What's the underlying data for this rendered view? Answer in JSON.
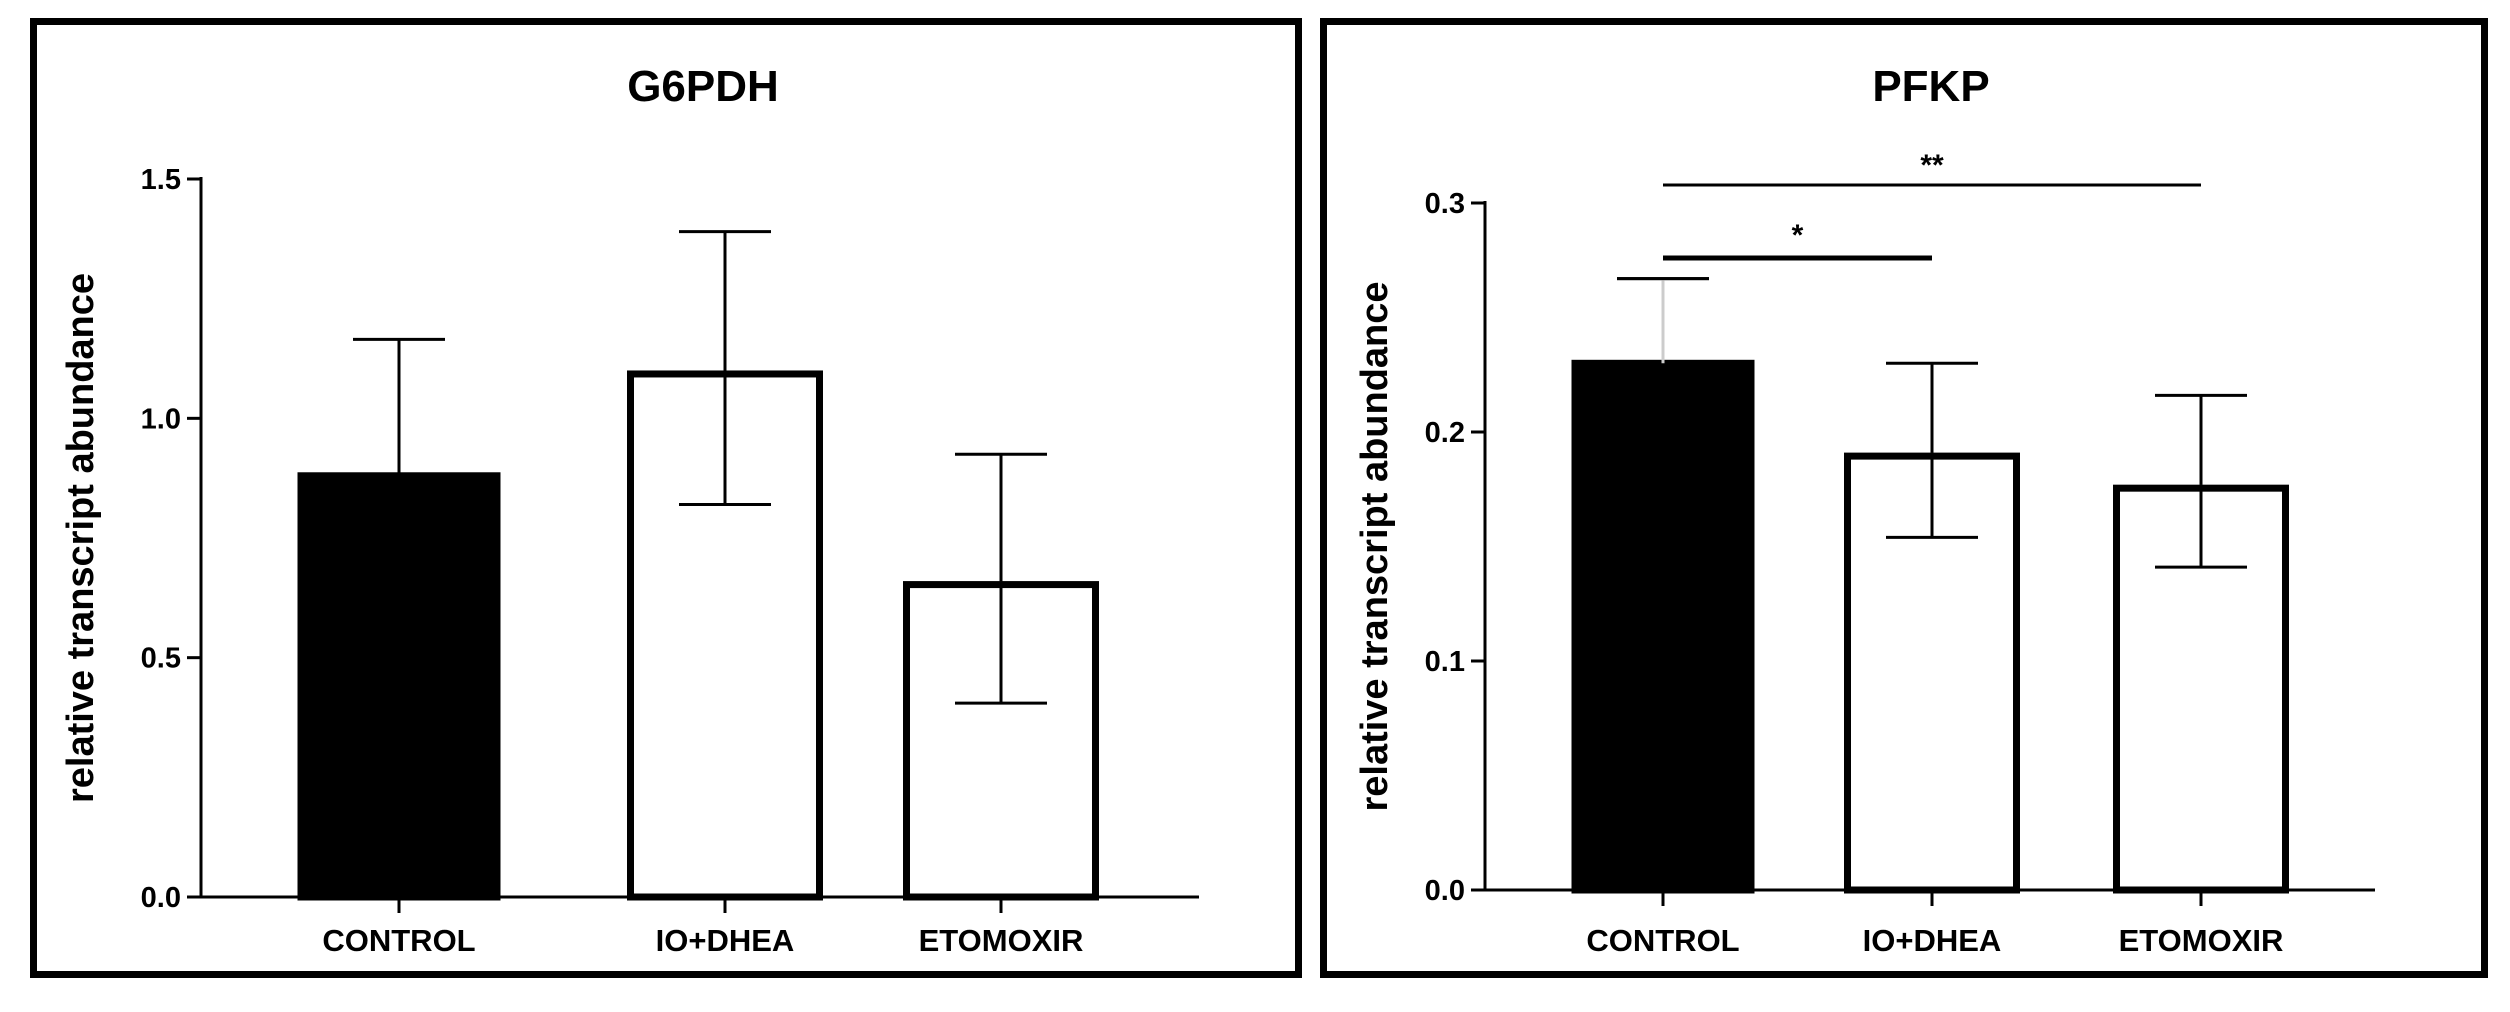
{
  "chart_data": [
    {
      "type": "bar",
      "title": "G6PDH",
      "xlabel": "",
      "ylabel": "relative transcript abundance",
      "ylim": [
        0,
        1.5
      ],
      "yticks": [
        "0.0",
        "0.5",
        "1.0",
        "1.5"
      ],
      "yticks_values": [
        0,
        0.5,
        1.0,
        1.5
      ],
      "categories": [
        "CONTROL",
        "IO+DHEA",
        "ETOMOXIR"
      ],
      "values": [
        0.88,
        1.1,
        0.66
      ],
      "error_upper": [
        1.165,
        1.39,
        0.925
      ],
      "error_lower": [
        null,
        0.82,
        0.405
      ],
      "fills": [
        "#000000",
        "#ffffff",
        "#ffffff"
      ],
      "significance": []
    },
    {
      "type": "bar",
      "title": "PFKP",
      "xlabel": "",
      "ylabel": "relative transcript abundance",
      "ylim": [
        0,
        0.3
      ],
      "yticks": [
        "0.0",
        "0.1",
        "0.2",
        "0.3"
      ],
      "yticks_values": [
        0,
        0.1,
        0.2,
        0.3
      ],
      "categories": [
        "CONTROL",
        "IO+DHEA",
        "ETOMOXIR"
      ],
      "values": [
        0.23,
        0.191,
        0.177
      ],
      "error_upper": [
        0.267,
        0.23,
        0.216
      ],
      "error_lower": [
        null,
        0.154,
        0.141
      ],
      "fills": [
        "#000000",
        "#ffffff",
        "#ffffff"
      ],
      "significance": [
        {
          "from": 0,
          "to": 1,
          "label": "*",
          "level": 1
        },
        {
          "from": 0,
          "to": 2,
          "label": "**",
          "level": 2
        }
      ]
    }
  ],
  "colors": {
    "bar_edge": "#000000",
    "axis": "#000000",
    "error_bar_inside_dark": "#cccccc"
  }
}
